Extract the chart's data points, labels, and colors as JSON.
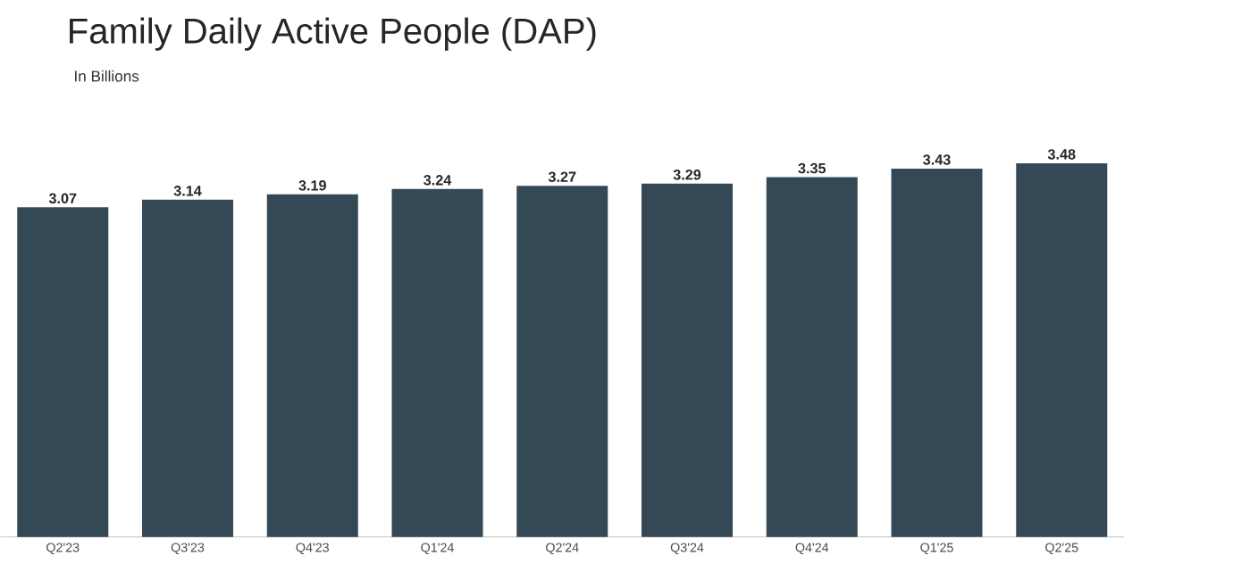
{
  "chart_data": {
    "type": "bar",
    "title": "Family Daily Active People (DAP)",
    "subtitle": "In Billions",
    "categories": [
      "Q2'23",
      "Q3'23",
      "Q4'23",
      "Q1'24",
      "Q2'24",
      "Q3'24",
      "Q4'24",
      "Q1'25",
      "Q2'25"
    ],
    "values": [
      3.07,
      3.14,
      3.19,
      3.24,
      3.27,
      3.29,
      3.35,
      3.43,
      3.48
    ],
    "color": "#344955",
    "data_labels": true,
    "tick_labels": "x"
  }
}
